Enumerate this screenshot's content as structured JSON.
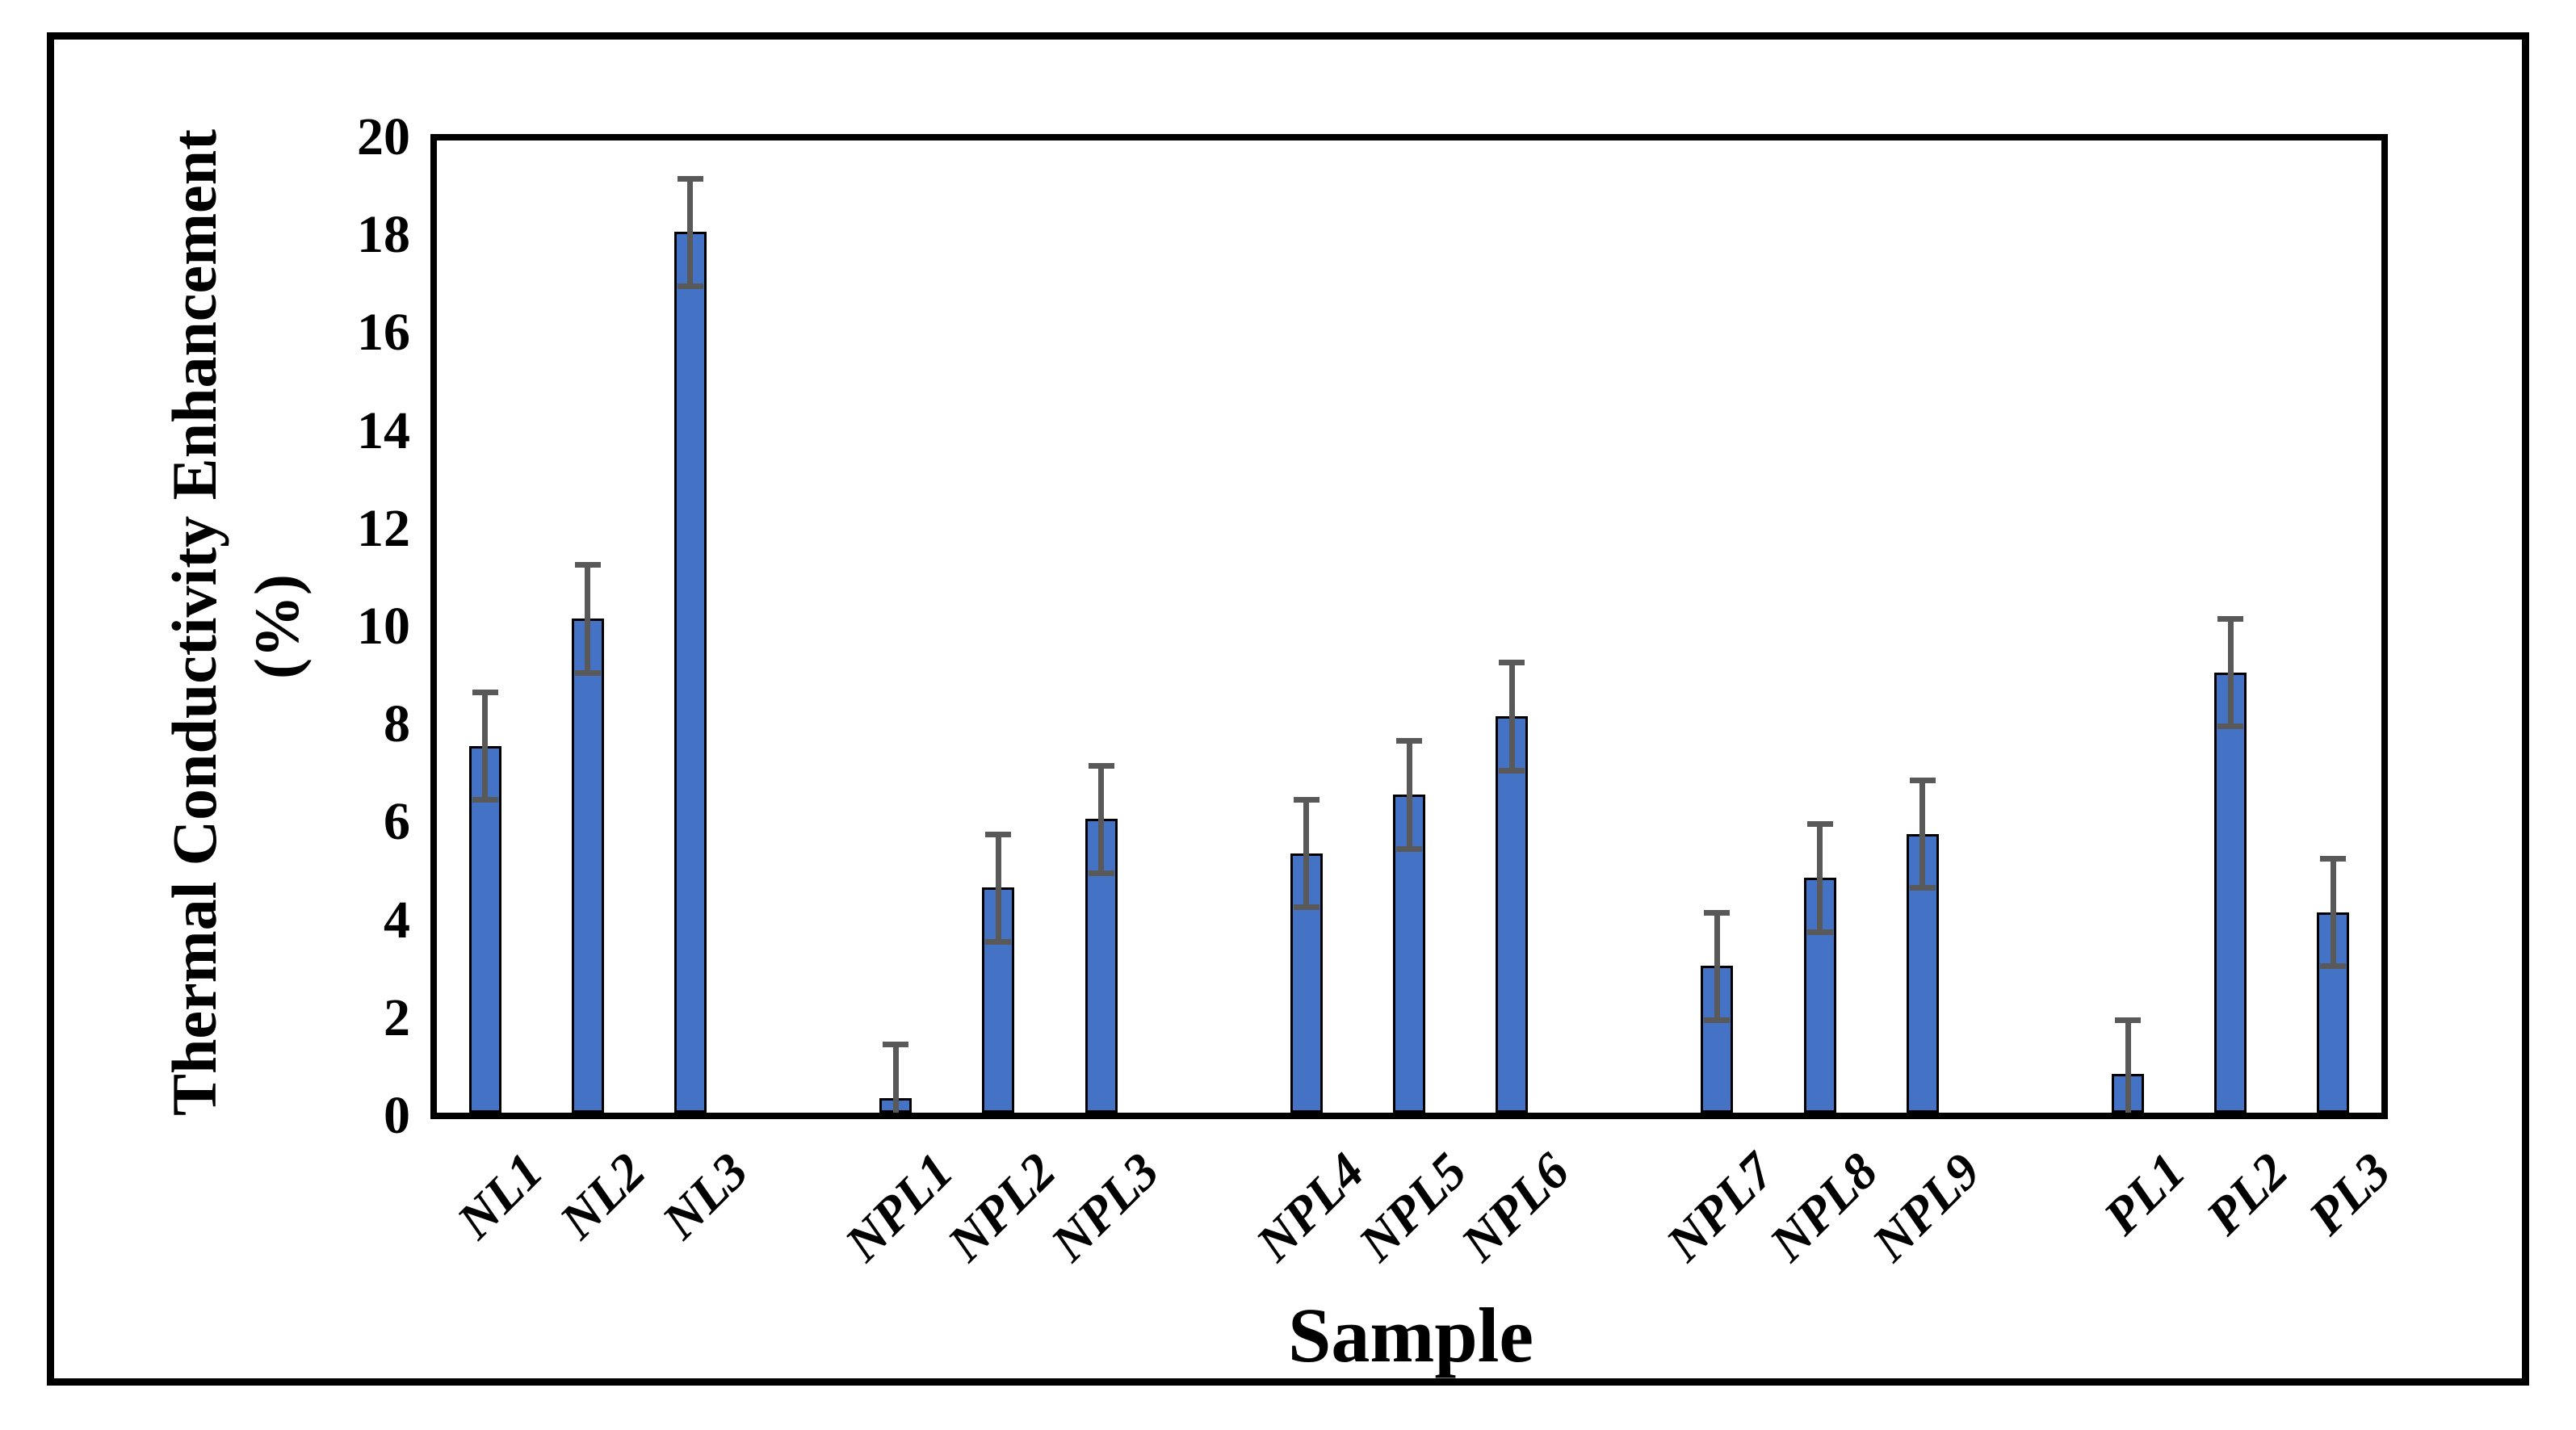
{
  "figure": {
    "background_color": "#ffffff",
    "outer_border_color": "#000000",
    "axis_color": "#000000"
  },
  "chart_data": {
    "type": "bar",
    "categories": [
      "NL1",
      "NL2",
      "NL3",
      "NPL1",
      "NPL2",
      "NPL3",
      "NPL4",
      "NPL5",
      "NPL6",
      "NPL7",
      "NPL8",
      "NPL9",
      "PL1",
      "PL2",
      "PL3"
    ],
    "values": [
      7.5,
      10.1,
      18.0,
      0.3,
      4.6,
      6.0,
      5.3,
      6.5,
      8.1,
      3.0,
      4.8,
      5.7,
      0.8,
      9.0,
      4.1
    ],
    "errors": [
      1.1,
      1.1,
      1.1,
      1.1,
      1.1,
      1.1,
      1.1,
      1.1,
      1.1,
      1.1,
      1.1,
      1.1,
      1.1,
      1.1,
      1.1
    ],
    "group_size": 3,
    "xlabel": "Sample",
    "ylabel": "Thermal Conductivity Enhancement (%)",
    "ylabel_lines": [
      "Thermal Conductivity Enhancement",
      "(%)"
    ],
    "ylim": [
      0,
      20
    ],
    "yticks": [
      "0",
      "2",
      "4",
      "6",
      "8",
      "10",
      "12",
      "14",
      "16",
      "18",
      "20"
    ],
    "grid": false,
    "legend": "none",
    "bar_color": "#4472C4",
    "bar_border_color": "#000000",
    "error_bar_color": "#595959"
  }
}
